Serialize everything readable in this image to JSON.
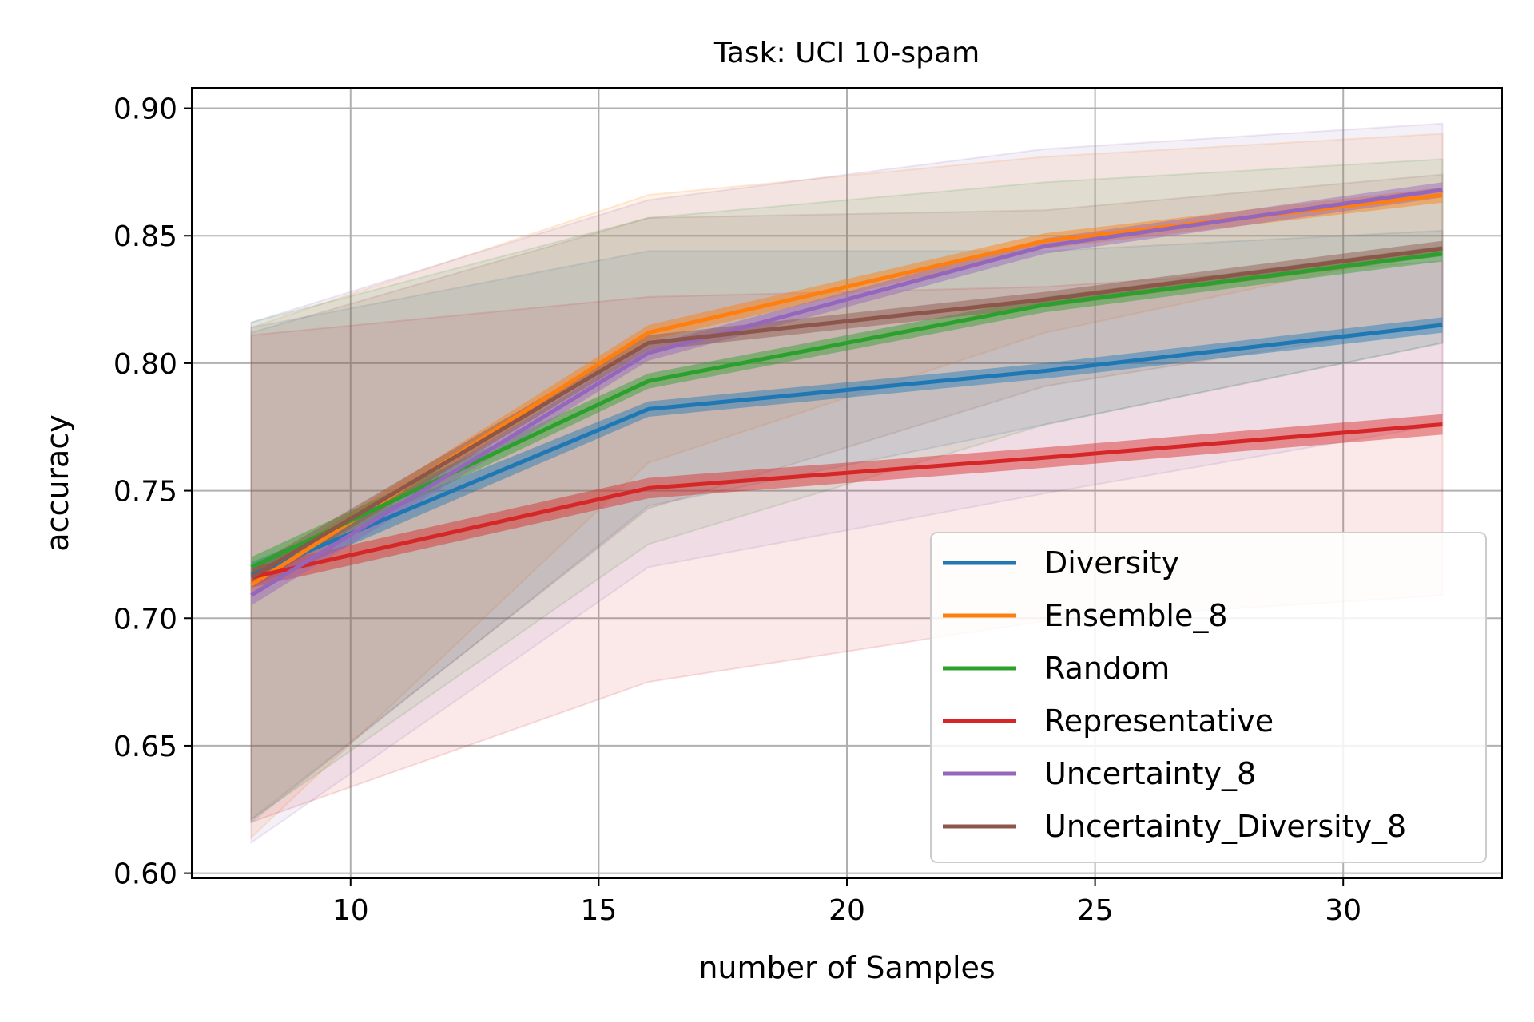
{
  "chart_data": {
    "type": "line",
    "title": "Task: UCI 10-spam",
    "xlabel": "number of Samples",
    "ylabel": "accuracy",
    "xlim": [
      6.8,
      33.2
    ],
    "ylim": [
      0.598,
      0.908
    ],
    "xticks": [
      10,
      15,
      20,
      25,
      30
    ],
    "xtick_labels": [
      "10",
      "15",
      "20",
      "25",
      "30"
    ],
    "yticks": [
      0.6,
      0.65,
      0.7,
      0.75,
      0.8,
      0.85,
      0.9
    ],
    "ytick_labels": [
      "0.60",
      "0.65",
      "0.70",
      "0.75",
      "0.80",
      "0.85",
      "0.90"
    ],
    "grid": true,
    "legend_position": "lower-right",
    "x": [
      8,
      16,
      24,
      32
    ],
    "series": [
      {
        "name": "Diversity",
        "color": "#1f77b4",
        "values": [
          0.717,
          0.782,
          0.797,
          0.815
        ],
        "ci": [
          [
            0.712,
            0.722
          ],
          [
            0.779,
            0.785
          ],
          [
            0.794,
            0.8
          ],
          [
            0.812,
            0.818
          ]
        ],
        "band": [
          [
            0.62,
            0.814
          ],
          [
            0.744,
            0.844
          ],
          [
            0.776,
            0.844
          ],
          [
            0.808,
            0.852
          ]
        ]
      },
      {
        "name": "Ensemble_8",
        "color": "#ff7f0e",
        "values": [
          0.713,
          0.812,
          0.848,
          0.866
        ],
        "ci": [
          [
            0.709,
            0.717
          ],
          [
            0.809,
            0.815
          ],
          [
            0.845,
            0.851
          ],
          [
            0.863,
            0.869
          ]
        ],
        "band": [
          [
            0.614,
            0.814
          ],
          [
            0.761,
            0.866
          ],
          [
            0.812,
            0.881
          ],
          [
            0.845,
            0.89
          ]
        ]
      },
      {
        "name": "Random",
        "color": "#2ca02c",
        "values": [
          0.72,
          0.793,
          0.823,
          0.843
        ],
        "ci": [
          [
            0.716,
            0.724
          ],
          [
            0.79,
            0.796
          ],
          [
            0.82,
            0.826
          ],
          [
            0.84,
            0.846
          ]
        ],
        "band": [
          [
            0.621,
            0.816
          ],
          [
            0.729,
            0.857
          ],
          [
            0.776,
            0.871
          ],
          [
            0.808,
            0.88
          ]
        ]
      },
      {
        "name": "Representative",
        "color": "#d62728",
        "values": [
          0.716,
          0.751,
          0.763,
          0.776
        ],
        "ci": [
          [
            0.712,
            0.72
          ],
          [
            0.747,
            0.755
          ],
          [
            0.759,
            0.767
          ],
          [
            0.772,
            0.78
          ]
        ],
        "band": [
          [
            0.62,
            0.811
          ],
          [
            0.675,
            0.826
          ],
          [
            0.699,
            0.83
          ],
          [
            0.709,
            0.84
          ]
        ]
      },
      {
        "name": "Uncertainty_8",
        "color": "#9467bd",
        "values": [
          0.709,
          0.804,
          0.846,
          0.868
        ],
        "ci": [
          [
            0.705,
            0.713
          ],
          [
            0.801,
            0.807
          ],
          [
            0.843,
            0.849
          ],
          [
            0.865,
            0.871
          ]
        ],
        "band": [
          [
            0.612,
            0.816
          ],
          [
            0.72,
            0.864
          ],
          [
            0.749,
            0.884
          ],
          [
            0.776,
            0.894
          ]
        ]
      },
      {
        "name": "Uncertainty_Diversity_8",
        "color": "#8c564b",
        "values": [
          0.716,
          0.808,
          0.825,
          0.845
        ],
        "ci": [
          [
            0.712,
            0.72
          ],
          [
            0.805,
            0.811
          ],
          [
            0.822,
            0.828
          ],
          [
            0.842,
            0.848
          ]
        ],
        "band": [
          [
            0.621,
            0.812
          ],
          [
            0.743,
            0.857
          ],
          [
            0.791,
            0.86
          ],
          [
            0.816,
            0.874
          ]
        ]
      }
    ]
  }
}
